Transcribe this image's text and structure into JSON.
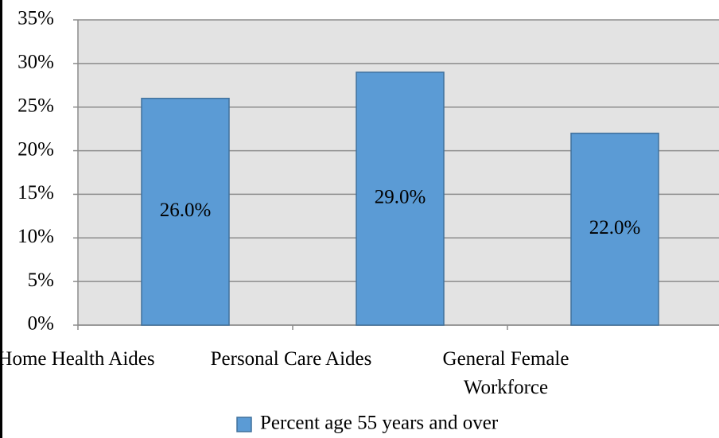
{
  "chart_data": {
    "type": "bar",
    "categories": [
      "Home Health Aides",
      "Personal Care Aides",
      "General Female Workforce"
    ],
    "series": [
      {
        "name": "Percent age 55 years and over",
        "color": "#5b9bd5",
        "values": [
          26,
          29,
          22
        ],
        "value_labels": [
          "26.0%",
          "29.0%",
          "22.0%"
        ]
      }
    ],
    "ylim": [
      0,
      35
    ],
    "yticks": [
      {
        "value": 0,
        "label": "0%"
      },
      {
        "value": 5,
        "label": "5%"
      },
      {
        "value": 10,
        "label": "10%"
      },
      {
        "value": 15,
        "label": "15%"
      },
      {
        "value": 20,
        "label": "20%"
      },
      {
        "value": 25,
        "label": "25%"
      },
      {
        "value": 30,
        "label": "30%"
      },
      {
        "value": 35,
        "label": "35%"
      }
    ],
    "grid": true,
    "legend": "bottom"
  }
}
